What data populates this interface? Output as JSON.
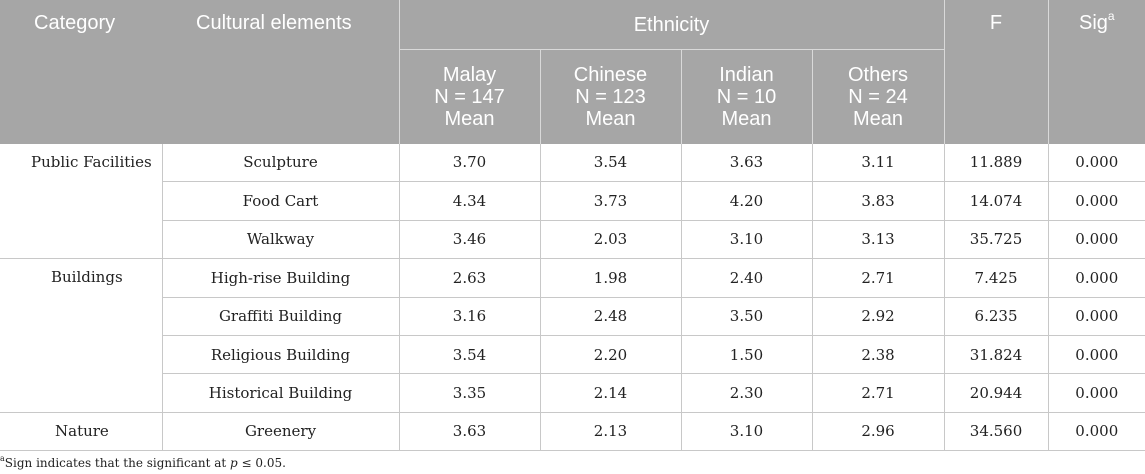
{
  "header": {
    "category": "Category",
    "cultural_elements": "Cultural elements",
    "ethnicity": "Ethnicity",
    "f": "F",
    "sig": "Sig",
    "sig_sup": "a",
    "groups": [
      {
        "name": "Malay",
        "n": "N = 147",
        "stat": "Mean"
      },
      {
        "name": "Chinese",
        "n": "N = 123",
        "stat": "Mean"
      },
      {
        "name": "Indian",
        "n": "N = 10",
        "stat": "Mean"
      },
      {
        "name": "Others",
        "n": "N = 24",
        "stat": "Mean"
      }
    ]
  },
  "categories": {
    "public": "Public Facilities",
    "buildings": "Buildings",
    "nature": "Nature"
  },
  "rows": [
    {
      "element": "Sculpture",
      "malay": "3.70",
      "chinese": "3.54",
      "indian": "3.63",
      "others": "3.11",
      "f": "11.889",
      "sig": "0.000"
    },
    {
      "element": "Food Cart",
      "malay": "4.34",
      "chinese": "3.73",
      "indian": "4.20",
      "others": "3.83",
      "f": "14.074",
      "sig": "0.000"
    },
    {
      "element": "Walkway",
      "malay": "3.46",
      "chinese": "2.03",
      "indian": "3.10",
      "others": "3.13",
      "f": "35.725",
      "sig": "0.000"
    },
    {
      "element": "High-rise Building",
      "malay": "2.63",
      "chinese": "1.98",
      "indian": "2.40",
      "others": "2.71",
      "f": "7.425",
      "sig": "0.000"
    },
    {
      "element": "Graffiti Building",
      "malay": "3.16",
      "chinese": "2.48",
      "indian": "3.50",
      "others": "2.92",
      "f": "6.235",
      "sig": "0.000"
    },
    {
      "element": "Religious Building",
      "malay": "3.54",
      "chinese": "2.20",
      "indian": "1.50",
      "others": "2.38",
      "f": "31.824",
      "sig": "0.000"
    },
    {
      "element": "Historical Building",
      "malay": "3.35",
      "chinese": "2.14",
      "indian": "2.30",
      "others": "2.71",
      "f": "20.944",
      "sig": "0.000"
    },
    {
      "element": "Greenery",
      "malay": "3.63",
      "chinese": "2.13",
      "indian": "3.10",
      "others": "2.96",
      "f": "34.560",
      "sig": "0.000"
    }
  ],
  "footnote": {
    "sup": "a",
    "text_before": "Sign indicates that the significant at ",
    "italic": "p",
    "text_after": " ≤ 0.05."
  }
}
